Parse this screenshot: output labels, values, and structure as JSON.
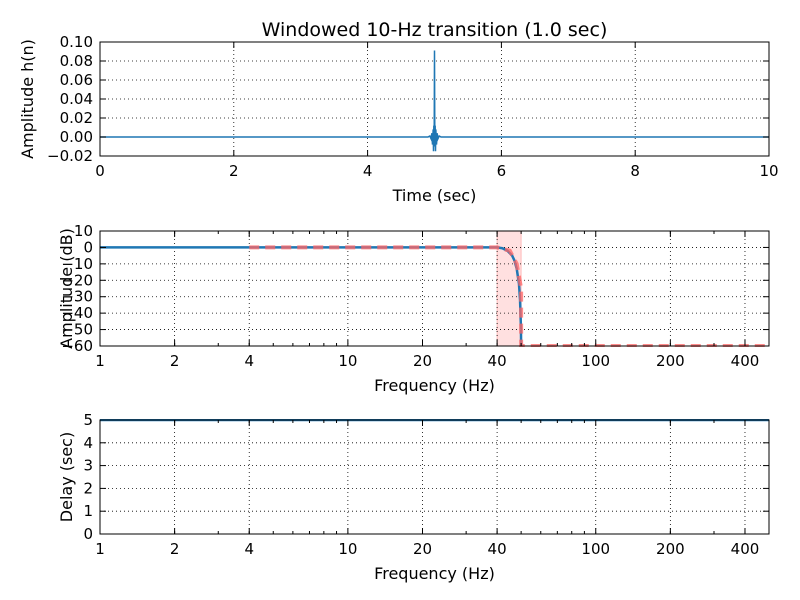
{
  "chart_data": [
    {
      "type": "line",
      "title": "Windowed 10-Hz transition (1.0 sec)",
      "xlabel": "Time (sec)",
      "ylabel": "Amplitude h(n)",
      "xlim": [
        0,
        10
      ],
      "ylim": [
        -0.02,
        0.1
      ],
      "xticks": [
        0,
        2,
        4,
        6,
        8,
        10
      ],
      "xtick_labels": [
        "0",
        "2",
        "4",
        "6",
        "8",
        "10"
      ],
      "yticks": [
        -0.02,
        0.0,
        0.02,
        0.04,
        0.06,
        0.08,
        0.1
      ],
      "ytick_labels": [
        "−0.02",
        "0.00",
        "0.02",
        "0.04",
        "0.06",
        "0.08",
        "0.10"
      ],
      "grid": true,
      "series": [
        {
          "color": "#1f77b4",
          "x": [
            0,
            4.9,
            4.93,
            4.95,
            4.96,
            4.97,
            4.98,
            4.985,
            4.99,
            4.995,
            5.0,
            5.005,
            5.01,
            5.015,
            5.02,
            5.03,
            5.04,
            5.05,
            5.07,
            5.1,
            10
          ],
          "y": [
            0,
            0,
            0.001,
            -0.002,
            0.004,
            -0.008,
            0.008,
            -0.015,
            0.012,
            -0.01,
            0.091,
            -0.01,
            0.012,
            -0.015,
            0.008,
            -0.008,
            0.004,
            -0.002,
            0.001,
            0,
            0
          ]
        }
      ]
    },
    {
      "type": "line",
      "xlabel": "Frequency (Hz)",
      "ylabel": "Amplitude (dB)",
      "xscale": "log",
      "xlim": [
        1,
        500
      ],
      "ylim": [
        -60,
        10
      ],
      "xticks": [
        1,
        2,
        4,
        10,
        20,
        40,
        100,
        200,
        400
      ],
      "xtick_labels": [
        "1",
        "2",
        "4",
        "10",
        "20",
        "40",
        "100",
        "200",
        "400"
      ],
      "yticks": [
        -60,
        -50,
        -40,
        -30,
        -20,
        -10,
        0,
        10
      ],
      "ytick_labels": [
        "−60",
        "−50",
        "−40",
        "−30",
        "−20",
        "−10",
        "0",
        "10"
      ],
      "grid": true,
      "transition_band": [
        40,
        50
      ],
      "transition_color": "#ff9999",
      "series": [
        {
          "color": "#1f77b4",
          "style": "solid",
          "x": [
            1,
            40,
            42,
            44,
            46,
            47,
            48,
            49,
            49.5,
            49.9,
            50
          ],
          "y": [
            0,
            0,
            -0.5,
            -2,
            -5,
            -8,
            -13,
            -22,
            -32,
            -48,
            -60
          ]
        },
        {
          "color": "#ff6666",
          "style": "dashed",
          "x": [
            4,
            40,
            45,
            48,
            50,
            50.01,
            51,
            500
          ],
          "y": [
            0,
            0,
            -2,
            -10,
            -25,
            -60,
            -60,
            -60
          ]
        }
      ]
    },
    {
      "type": "line",
      "xlabel": "Frequency (Hz)",
      "ylabel": "Delay (sec)",
      "xscale": "log",
      "xlim": [
        1,
        500
      ],
      "ylim": [
        0,
        5
      ],
      "xticks": [
        1,
        2,
        4,
        10,
        20,
        40,
        100,
        200,
        400
      ],
      "xtick_labels": [
        "1",
        "2",
        "4",
        "10",
        "20",
        "40",
        "100",
        "200",
        "400"
      ],
      "yticks": [
        0,
        1,
        2,
        3,
        4,
        5
      ],
      "ytick_labels": [
        "0",
        "1",
        "2",
        "3",
        "4",
        "5"
      ],
      "grid": true,
      "series": [
        {
          "color": "#1f77b4",
          "style": "solid",
          "x": [
            1,
            500
          ],
          "y": [
            5,
            5
          ]
        }
      ]
    }
  ]
}
